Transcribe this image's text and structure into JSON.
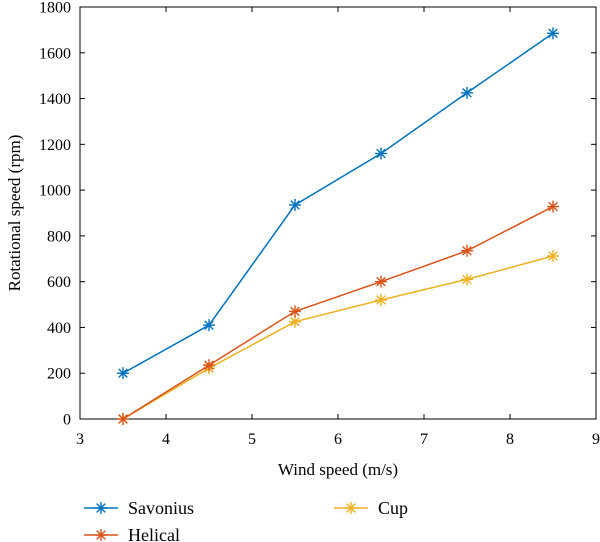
{
  "chart_data": {
    "type": "line",
    "xlabel": "Wind speed (m/s)",
    "ylabel": "Rotational speed (rpm)",
    "xlim": [
      3,
      9
    ],
    "ylim": [
      0,
      1800
    ],
    "x_ticks": [
      3,
      4,
      5,
      6,
      7,
      8,
      9
    ],
    "y_ticks": [
      0,
      200,
      400,
      600,
      800,
      1000,
      1200,
      1400,
      1600,
      1800
    ],
    "x": [
      3.5,
      4.5,
      5.5,
      6.5,
      7.5,
      8.5
    ],
    "series": [
      {
        "name": "Savonius",
        "color": "#0072BD",
        "marker": "asterisk",
        "values": [
          200,
          410,
          935,
          1160,
          1425,
          1685
        ]
      },
      {
        "name": "Helical",
        "color": "#D95319",
        "marker": "asterisk",
        "values": [
          0,
          235,
          470,
          600,
          735,
          928
        ]
      },
      {
        "name": "Cup",
        "color": "#EDB120",
        "marker": "asterisk",
        "values": [
          0,
          222,
          425,
          520,
          610,
          712
        ]
      }
    ],
    "grid": false,
    "legend": "bottom"
  }
}
